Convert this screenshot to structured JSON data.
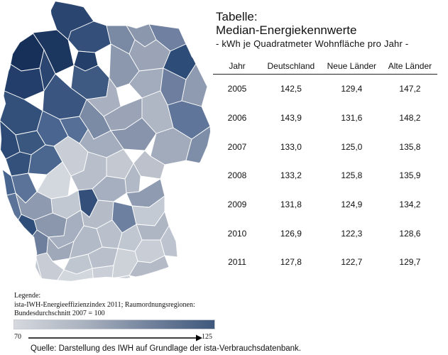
{
  "map": {
    "description_colors": {
      "low": "#d6d9de",
      "mid": "#8a97ad",
      "high": "#1f3a63"
    }
  },
  "table": {
    "title_line1": "Tabelle:",
    "title_line2": "Median-Energiekennwerte",
    "title_line3": "- kWh je Quadratmeter Wohnfläche pro Jahr -",
    "headers": [
      "Jahr",
      "Deutschland",
      "Neue Länder",
      "Alte Länder"
    ],
    "rows": [
      [
        "2005",
        "142,5",
        "129,4",
        "147,2"
      ],
      [
        "2006",
        "143,9",
        "131,6",
        "148,2"
      ],
      [
        "2007",
        "133,0",
        "125,0",
        "135,8"
      ],
      [
        "2008",
        "133,2",
        "125,8",
        "135,9"
      ],
      [
        "2009",
        "131,8",
        "124,9",
        "134,2"
      ],
      [
        "2010",
        "126,9",
        "122,3",
        "128,6"
      ],
      [
        "2011",
        "127,8",
        "122,7",
        "129,7"
      ]
    ]
  },
  "legend": {
    "heading": "Legende:",
    "line1": "ista-IWH-Energieeffizienzindex 2011; Raumordnungsregionen:",
    "line2": "Bundesdurchschnitt 2007 = 100",
    "scale_min": "70",
    "scale_max": "125",
    "gradient_start": "#d6d9de",
    "gradient_end": "#3f587c"
  },
  "source": "Quelle: Darstellung des IWH auf Grundlage der ista-Verbrauchsdatenbank."
}
